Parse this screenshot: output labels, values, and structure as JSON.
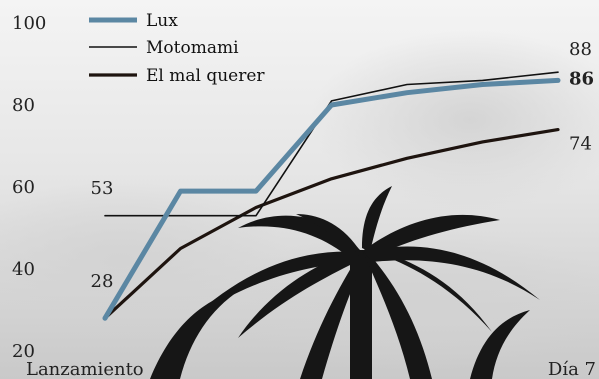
{
  "chart_data": {
    "type": "line",
    "title": "",
    "xlabel": "",
    "ylabel": "",
    "x_tick_labels": [
      "Lanzamiento",
      "Día 7"
    ],
    "x": [
      1,
      2,
      3,
      4,
      5,
      6,
      7
    ],
    "y_ticks": [
      20,
      40,
      60,
      80,
      100
    ],
    "ylim": [
      20,
      100
    ],
    "grid": false,
    "legend": "top-left",
    "background": "photo of palm tree against sky",
    "series": [
      {
        "name": "Lux",
        "values": [
          28,
          59,
          59,
          80,
          83,
          85,
          86
        ],
        "color": "#5b87a3",
        "style": "thick",
        "start_label": "28",
        "end_label": "86",
        "end_label_bold": true
      },
      {
        "name": "Motomami",
        "values": [
          53,
          53,
          53,
          81,
          85,
          86,
          88
        ],
        "color": "#111111",
        "style": "thin",
        "start_label": "53",
        "end_label": "88",
        "end_label_bold": false
      },
      {
        "name": "El mal querer",
        "values": [
          28,
          45,
          55,
          62,
          67,
          71,
          74
        ],
        "color": "#1e140f",
        "style": "medium",
        "start_label": "",
        "end_label": "74",
        "end_label_bold": false
      }
    ]
  }
}
